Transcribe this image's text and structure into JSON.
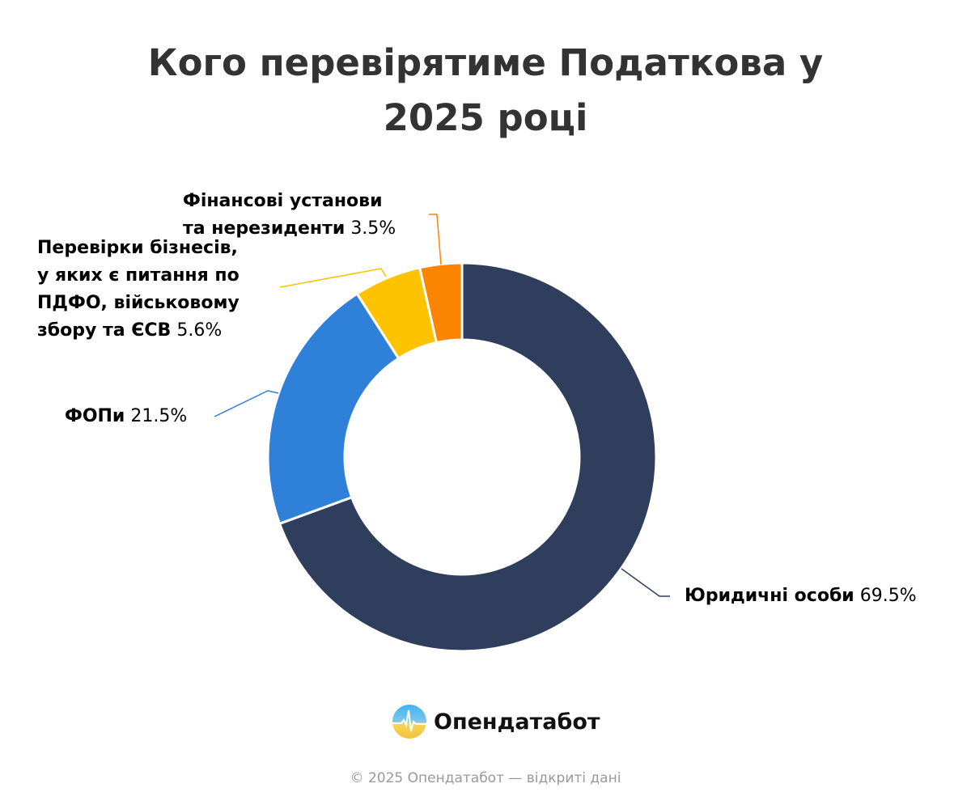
{
  "chart_data": {
    "type": "pie",
    "variant": "donut",
    "title": [
      "Кого перевірятиме Податкова у",
      "2025 році"
    ],
    "slices": [
      {
        "label": [
          "Юридичні особи"
        ],
        "value": 69.5,
        "display": "69.5%",
        "color": "#2f3e5c"
      },
      {
        "label": [
          "ФОПи"
        ],
        "value": 21.5,
        "display": "21.5%",
        "color": "#2e80d9"
      },
      {
        "label": [
          "Перевірки бізнесів,",
          "у яких є питання по",
          "ПДФО, військовому",
          "збору та ЄСВ"
        ],
        "value": 5.6,
        "display": "5.6%",
        "color": "#fdc300"
      },
      {
        "label": [
          "Фінансові установи",
          "та нерезиденти"
        ],
        "value": 3.5,
        "display": "3.5%",
        "color": "#fb8500"
      }
    ],
    "start_angle": "top",
    "direction": "clockwise"
  },
  "brand": {
    "name": "Опендатабот"
  },
  "footer": "© 2025 Опендатабот — відкриті дані"
}
